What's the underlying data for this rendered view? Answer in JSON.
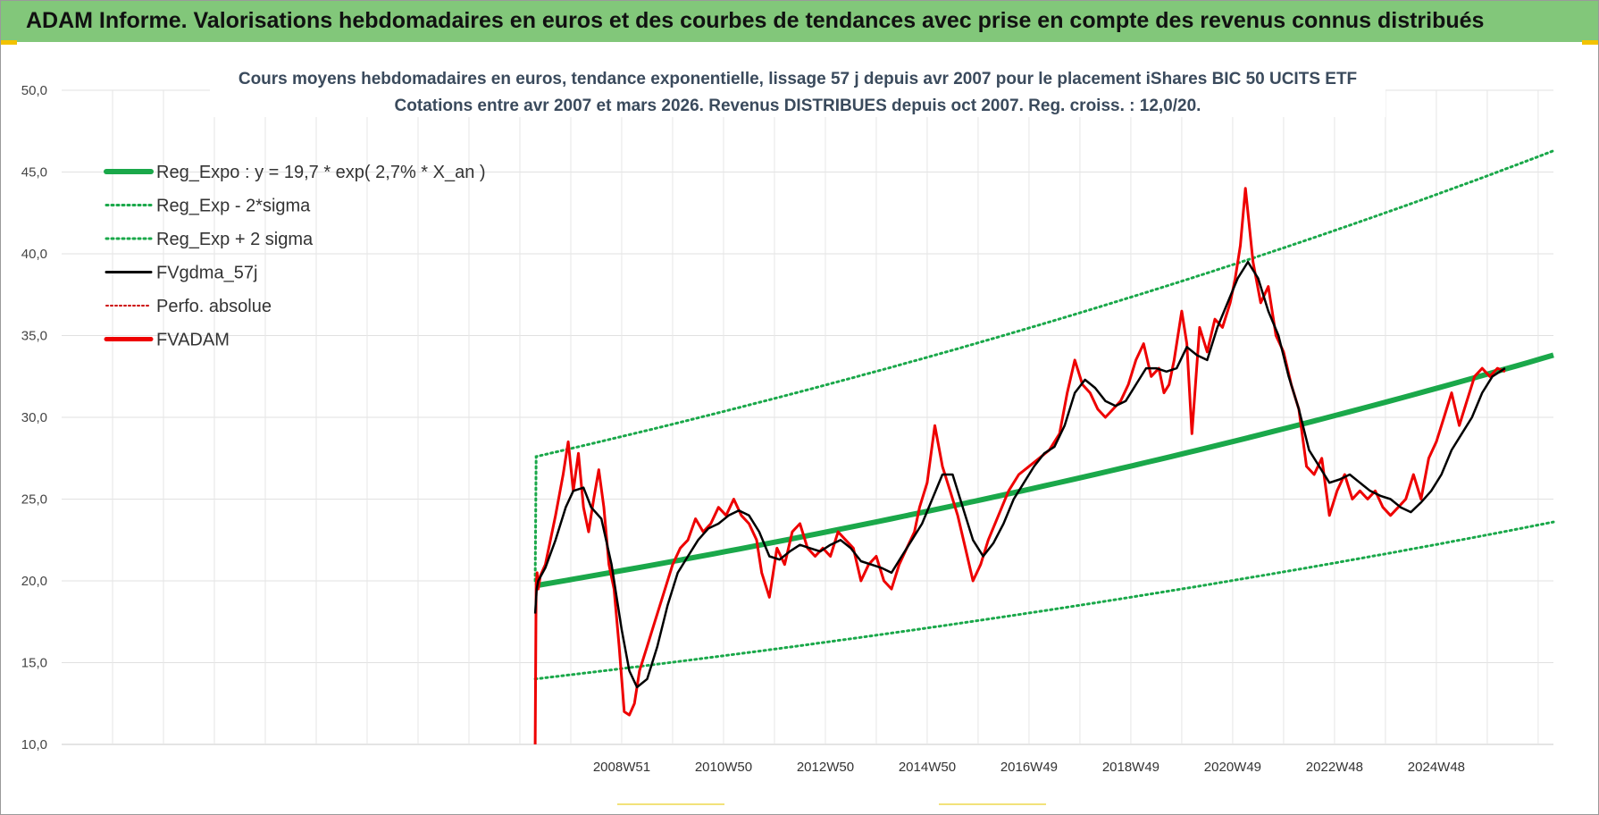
{
  "banner": {
    "title": "ADAM Informe. Valorisations hebdomadaires en euros et des courbes de tendances avec prise en compte des revenus connus distribués"
  },
  "colors": {
    "banner_bg": "#82c77a",
    "trend_green": "#1aa84a",
    "band_green": "#1aa84a",
    "smooth_black": "#000000",
    "price_red": "#ee0000",
    "perf_red": "#cc0000",
    "corner_accent": "#f2c200"
  },
  "chart_data": {
    "type": "line",
    "title_line1": "Cours moyens hebdomadaires en euros, tendance exponentielle, lissage 57 j depuis avr 2007 pour le placement iShares BIC 50 UCITS ETF",
    "title_line2": "Cotations entre avr 2007 et mars 2026. Revenus DISTRIBUES depuis oct 2007. Reg. croiss. : 12,0/20.",
    "ylim": [
      10,
      50
    ],
    "y_ticks": [
      "10,0",
      "15,0",
      "20,0",
      "25,0",
      "30,0",
      "35,0",
      "40,0",
      "45,0",
      "50,0"
    ],
    "x_range": [
      1998.0,
      2027.3
    ],
    "x_ticks": [
      {
        "label": "2008W51",
        "year": 2009.0
      },
      {
        "label": "2010W50",
        "year": 2011.0
      },
      {
        "label": "2012W50",
        "year": 2013.0
      },
      {
        "label": "2014W50",
        "year": 2015.0
      },
      {
        "label": "2016W49",
        "year": 2017.0
      },
      {
        "label": "2018W49",
        "year": 2019.0
      },
      {
        "label": "2020W49",
        "year": 2021.0
      },
      {
        "label": "2022W48",
        "year": 2023.0
      },
      {
        "label": "2024W48",
        "year": 2025.0
      }
    ],
    "grid": true,
    "legend_position": "top-left",
    "legend": [
      {
        "label": "Reg_Expo : y = 19,7 * exp( 2,7% *  X_an )",
        "style": "solid-thick-green"
      },
      {
        "label": "Reg_Exp - 2*sigma",
        "style": "dotted-green"
      },
      {
        "label": "Reg_Exp + 2 sigma",
        "style": "dotted-green"
      },
      {
        "label": "FVgdma_57j",
        "style": "solid-black"
      },
      {
        "label": "Perfo. absolue",
        "style": "dotted-red"
      },
      {
        "label": "FVADAM",
        "style": "solid-red"
      }
    ],
    "regression": {
      "a": 19.7,
      "rate": 0.027,
      "start_year": 2007.3,
      "end_year": 2027.3,
      "upper_start": 27.6,
      "upper_end": 46.3,
      "lower_start": 14.0,
      "lower_end": 23.6
    },
    "fvadam": {
      "x": [
        2007.3,
        2007.32,
        2007.34,
        2007.36,
        2007.4,
        2007.5,
        2007.6,
        2007.7,
        2007.85,
        2007.95,
        2008.05,
        2008.15,
        2008.25,
        2008.35,
        2008.45,
        2008.55,
        2008.65,
        2008.75,
        2008.85,
        2008.95,
        2009.05,
        2009.15,
        2009.25,
        2009.35,
        2009.5,
        2009.65,
        2009.8,
        2010.0,
        2010.15,
        2010.3,
        2010.45,
        2010.6,
        2010.75,
        2010.9,
        2011.05,
        2011.2,
        2011.35,
        2011.5,
        2011.65,
        2011.75,
        2011.9,
        2012.05,
        2012.2,
        2012.35,
        2012.5,
        2012.65,
        2012.8,
        2012.95,
        2013.1,
        2013.25,
        2013.4,
        2013.55,
        2013.7,
        2013.85,
        2014.0,
        2014.15,
        2014.3,
        2014.45,
        2014.6,
        2014.75,
        2014.85,
        2015.0,
        2015.15,
        2015.3,
        2015.45,
        2015.6,
        2015.75,
        2015.9,
        2016.05,
        2016.2,
        2016.4,
        2016.6,
        2016.8,
        2017.0,
        2017.2,
        2017.4,
        2017.6,
        2017.75,
        2017.9,
        2018.05,
        2018.2,
        2018.35,
        2018.5,
        2018.65,
        2018.8,
        2018.95,
        2019.1,
        2019.25,
        2019.4,
        2019.55,
        2019.65,
        2019.75,
        2019.85,
        2020.0,
        2020.1,
        2020.2,
        2020.35,
        2020.5,
        2020.65,
        2020.8,
        2020.95,
        2021.05,
        2021.15,
        2021.25,
        2021.4,
        2021.55,
        2021.7,
        2021.85,
        2022.0,
        2022.15,
        2022.3,
        2022.45,
        2022.6,
        2022.75,
        2022.9,
        2023.05,
        2023.2,
        2023.35,
        2023.5,
        2023.65,
        2023.8,
        2023.95,
        2024.1,
        2024.25,
        2024.4,
        2024.55,
        2024.7,
        2024.85,
        2025.0,
        2025.15,
        2025.3,
        2025.45,
        2025.6,
        2025.75,
        2025.9,
        2026.05,
        2026.2,
        2026.35
      ],
      "y": [
        10.0,
        19.8,
        20.5,
        19.5,
        20.3,
        21.0,
        22.5,
        24.0,
        26.5,
        28.5,
        25.5,
        27.8,
        24.5,
        23.0,
        25.0,
        26.8,
        24.5,
        21.0,
        19.5,
        16.0,
        12.0,
        11.8,
        12.5,
        14.5,
        16.0,
        17.5,
        19.0,
        21.0,
        22.0,
        22.5,
        23.8,
        23.0,
        23.5,
        24.5,
        24.0,
        25.0,
        24.0,
        23.5,
        22.5,
        20.5,
        19.0,
        22.0,
        21.0,
        23.0,
        23.5,
        22.0,
        21.5,
        22.0,
        21.5,
        23.0,
        22.5,
        22.0,
        20.0,
        21.0,
        21.5,
        20.0,
        19.5,
        21.0,
        22.0,
        23.0,
        24.5,
        26.0,
        29.5,
        27.0,
        25.5,
        24.0,
        22.0,
        20.0,
        21.0,
        22.5,
        24.0,
        25.5,
        26.5,
        27.0,
        27.5,
        28.0,
        29.0,
        31.5,
        33.5,
        32.0,
        31.5,
        30.5,
        30.0,
        30.5,
        31.0,
        32.0,
        33.5,
        34.5,
        32.5,
        33.0,
        31.5,
        32.0,
        33.5,
        36.5,
        34.5,
        29.0,
        35.5,
        34.0,
        36.0,
        35.5,
        37.0,
        38.5,
        40.5,
        44.0,
        39.5,
        37.0,
        38.0,
        35.0,
        34.0,
        32.0,
        30.5,
        27.0,
        26.5,
        27.5,
        24.0,
        25.5,
        26.5,
        25.0,
        25.5,
        25.0,
        25.5,
        24.5,
        24.0,
        24.5,
        25.0,
        26.5,
        25.0,
        27.5,
        28.5,
        30.0,
        31.5,
        29.5,
        31.0,
        32.5,
        33.0,
        32.5,
        33.0,
        32.8
      ],
      "name": "FVADAM"
    },
    "fvgdma": {
      "x": [
        2007.3,
        2007.33,
        2007.36,
        2007.5,
        2007.7,
        2007.9,
        2008.05,
        2008.25,
        2008.4,
        2008.6,
        2008.8,
        2009.0,
        2009.15,
        2009.3,
        2009.5,
        2009.7,
        2009.9,
        2010.1,
        2010.3,
        2010.5,
        2010.7,
        2010.9,
        2011.1,
        2011.3,
        2011.5,
        2011.7,
        2011.9,
        2012.1,
        2012.3,
        2012.5,
        2012.7,
        2012.9,
        2013.1,
        2013.3,
        2013.5,
        2013.7,
        2013.9,
        2014.1,
        2014.3,
        2014.5,
        2014.7,
        2014.9,
        2015.1,
        2015.3,
        2015.5,
        2015.7,
        2015.9,
        2016.1,
        2016.3,
        2016.5,
        2016.7,
        2016.9,
        2017.1,
        2017.3,
        2017.5,
        2017.7,
        2017.9,
        2018.1,
        2018.3,
        2018.5,
        2018.7,
        2018.9,
        2019.1,
        2019.3,
        2019.5,
        2019.7,
        2019.9,
        2020.1,
        2020.3,
        2020.5,
        2020.7,
        2020.9,
        2021.1,
        2021.3,
        2021.5,
        2021.7,
        2021.9,
        2022.1,
        2022.3,
        2022.5,
        2022.7,
        2022.9,
        2023.1,
        2023.3,
        2023.5,
        2023.7,
        2023.9,
        2024.1,
        2024.3,
        2024.5,
        2024.7,
        2024.9,
        2025.1,
        2025.3,
        2025.5,
        2025.7,
        2025.9,
        2026.1,
        2026.35
      ],
      "y": [
        18.0,
        19.5,
        20.0,
        20.8,
        22.5,
        24.5,
        25.5,
        25.7,
        24.5,
        23.8,
        21.0,
        17.0,
        14.5,
        13.5,
        14.0,
        16.0,
        18.5,
        20.5,
        21.5,
        22.5,
        23.2,
        23.5,
        24.0,
        24.3,
        24.0,
        23.0,
        21.5,
        21.3,
        21.8,
        22.2,
        22.0,
        21.8,
        22.2,
        22.5,
        22.0,
        21.2,
        21.0,
        20.8,
        20.5,
        21.5,
        22.5,
        23.5,
        25.0,
        26.5,
        26.5,
        24.5,
        22.5,
        21.5,
        22.3,
        23.5,
        25.0,
        26.0,
        27.0,
        27.8,
        28.2,
        29.5,
        31.5,
        32.3,
        31.8,
        31.0,
        30.7,
        31.0,
        32.0,
        33.0,
        33.0,
        32.8,
        33.0,
        34.3,
        33.8,
        33.5,
        35.5,
        37.0,
        38.5,
        39.5,
        38.5,
        36.5,
        35.0,
        32.5,
        30.5,
        28.0,
        27.0,
        26.0,
        26.2,
        26.5,
        26.0,
        25.5,
        25.2,
        25.0,
        24.5,
        24.2,
        24.8,
        25.5,
        26.5,
        28.0,
        29.0,
        30.0,
        31.5,
        32.5,
        33.0
      ],
      "name": "FVgdma_57j"
    }
  }
}
